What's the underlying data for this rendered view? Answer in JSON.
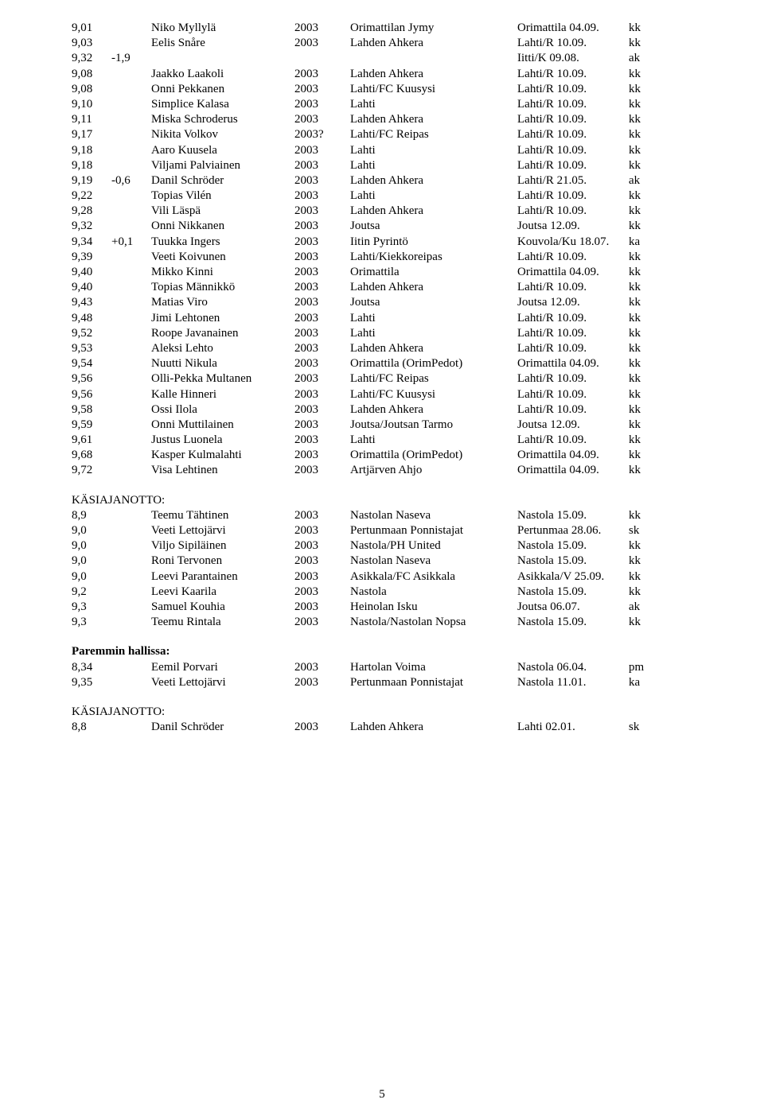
{
  "rows_main": [
    {
      "c1": "9,01",
      "c2": "",
      "c3": "Niko Myllylä",
      "c4": "2003",
      "c5": "Orimattilan Jymy",
      "c6": "Orimattila 04.09.",
      "c7": "kk"
    },
    {
      "c1": "9,03",
      "c2": "",
      "c3": "Eelis Snåre",
      "c4": "2003",
      "c5": "Lahden Ahkera",
      "c6": "Lahti/R 10.09.",
      "c7": "kk"
    },
    {
      "c1": "9,32",
      "c2": "-1,9",
      "c3": "",
      "c4": "",
      "c5": "",
      "c6": "Iitti/K 09.08.",
      "c7": "ak"
    },
    {
      "c1": "9,08",
      "c2": "",
      "c3": "Jaakko Laakoli",
      "c4": "2003",
      "c5": "Lahden Ahkera",
      "c6": "Lahti/R 10.09.",
      "c7": "kk"
    },
    {
      "c1": "9,08",
      "c2": "",
      "c3": "Onni Pekkanen",
      "c4": "2003",
      "c5": "Lahti/FC Kuusysi",
      "c6": "Lahti/R 10.09.",
      "c7": "kk"
    },
    {
      "c1": "9,10",
      "c2": "",
      "c3": "Simplice Kalasa",
      "c4": "2003",
      "c5": "Lahti",
      "c6": "Lahti/R 10.09.",
      "c7": "kk"
    },
    {
      "c1": "9,11",
      "c2": "",
      "c3": "Miska Schroderus",
      "c4": "2003",
      "c5": "Lahden Ahkera",
      "c6": "Lahti/R 10.09.",
      "c7": "kk"
    },
    {
      "c1": "9,17",
      "c2": "",
      "c3": "Nikita Volkov",
      "c4": "2003?",
      "c5": "Lahti/FC Reipas",
      "c6": "Lahti/R 10.09.",
      "c7": "kk"
    },
    {
      "c1": "9,18",
      "c2": "",
      "c3": "Aaro Kuusela",
      "c4": "2003",
      "c5": "Lahti",
      "c6": "Lahti/R 10.09.",
      "c7": "kk"
    },
    {
      "c1": "9,18",
      "c2": "",
      "c3": "Viljami Palviainen",
      "c4": "2003",
      "c5": "Lahti",
      "c6": "Lahti/R 10.09.",
      "c7": "kk"
    },
    {
      "c1": "9,19",
      "c2": "-0,6",
      "c3": "Danil Schröder",
      "c4": "2003",
      "c5": "Lahden Ahkera",
      "c6": "Lahti/R 21.05.",
      "c7": "ak"
    },
    {
      "c1": "9,22",
      "c2": "",
      "c3": "Topias Vilén",
      "c4": "2003",
      "c5": "Lahti",
      "c6": "Lahti/R 10.09.",
      "c7": "kk"
    },
    {
      "c1": "9,28",
      "c2": "",
      "c3": "Vili Läspä",
      "c4": "2003",
      "c5": "Lahden Ahkera",
      "c6": "Lahti/R 10.09.",
      "c7": "kk"
    },
    {
      "c1": "9,32",
      "c2": "",
      "c3": "Onni Nikkanen",
      "c4": "2003",
      "c5": "Joutsa",
      "c6": "Joutsa 12.09.",
      "c7": "kk"
    },
    {
      "c1": "9,34",
      "c2": "+0,1",
      "c3": "Tuukka Ingers",
      "c4": "2003",
      "c5": "Iitin Pyrintö",
      "c6": "Kouvola/Ku 18.07.",
      "c7": "ka"
    },
    {
      "c1": "9,39",
      "c2": "",
      "c3": "Veeti Koivunen",
      "c4": "2003",
      "c5": "Lahti/Kiekkoreipas",
      "c6": "Lahti/R 10.09.",
      "c7": "kk"
    },
    {
      "c1": "9,40",
      "c2": "",
      "c3": "Mikko Kinni",
      "c4": "2003",
      "c5": "Orimattila",
      "c6": "Orimattila 04.09.",
      "c7": "kk"
    },
    {
      "c1": "9,40",
      "c2": "",
      "c3": "Topias Männikkö",
      "c4": "2003",
      "c5": "Lahden Ahkera",
      "c6": "Lahti/R 10.09.",
      "c7": "kk"
    },
    {
      "c1": "9,43",
      "c2": "",
      "c3": "Matias Viro",
      "c4": "2003",
      "c5": "Joutsa",
      "c6": "Joutsa 12.09.",
      "c7": "kk"
    },
    {
      "c1": "9,48",
      "c2": "",
      "c3": "Jimi Lehtonen",
      "c4": "2003",
      "c5": "Lahti",
      "c6": "Lahti/R 10.09.",
      "c7": "kk"
    },
    {
      "c1": "9,52",
      "c2": "",
      "c3": "Roope Javanainen",
      "c4": "2003",
      "c5": "Lahti",
      "c6": "Lahti/R 10.09.",
      "c7": "kk"
    },
    {
      "c1": "9,53",
      "c2": "",
      "c3": "Aleksi Lehto",
      "c4": "2003",
      "c5": "Lahden Ahkera",
      "c6": "Lahti/R 10.09.",
      "c7": "kk"
    },
    {
      "c1": "9,54",
      "c2": "",
      "c3": "Nuutti Nikula",
      "c4": "2003",
      "c5": "Orimattila (OrimPedot)",
      "c6": "Orimattila 04.09.",
      "c7": "kk"
    },
    {
      "c1": "9,56",
      "c2": "",
      "c3": "Olli-Pekka Multanen",
      "c4": "2003",
      "c5": "Lahti/FC Reipas",
      "c6": "Lahti/R 10.09.",
      "c7": "kk"
    },
    {
      "c1": "9,56",
      "c2": "",
      "c3": "Kalle Hinneri",
      "c4": "2003",
      "c5": "Lahti/FC Kuusysi",
      "c6": "Lahti/R 10.09.",
      "c7": "kk"
    },
    {
      "c1": "9,58",
      "c2": "",
      "c3": "Ossi Ilola",
      "c4": "2003",
      "c5": "Lahden Ahkera",
      "c6": "Lahti/R 10.09.",
      "c7": "kk"
    },
    {
      "c1": "9,59",
      "c2": "",
      "c3": "Onni Muttilainen",
      "c4": "2003",
      "c5": "Joutsa/Joutsan Tarmo",
      "c6": "Joutsa 12.09.",
      "c7": "kk"
    },
    {
      "c1": "9,61",
      "c2": "",
      "c3": "Justus Luonela",
      "c4": "2003",
      "c5": "Lahti",
      "c6": "Lahti/R 10.09.",
      "c7": "kk"
    },
    {
      "c1": "9,68",
      "c2": "",
      "c3": "Kasper Kulmalahti",
      "c4": "2003",
      "c5": "Orimattila (OrimPedot)",
      "c6": "Orimattila 04.09.",
      "c7": "kk"
    },
    {
      "c1": "9,72",
      "c2": "",
      "c3": "Visa Lehtinen",
      "c4": "2003",
      "c5": "Artjärven Ahjo",
      "c6": "Orimattila 04.09.",
      "c7": "kk"
    }
  ],
  "head1": "KÄSIAJANOTTO:",
  "rows_k1": [
    {
      "c1": "8,9",
      "c2": "",
      "c3": "Teemu Tähtinen",
      "c4": "2003",
      "c5": "Nastolan Naseva",
      "c6": "Nastola 15.09.",
      "c7": "kk"
    },
    {
      "c1": "9,0",
      "c2": "",
      "c3": "Veeti Lettojärvi",
      "c4": "2003",
      "c5": "Pertunmaan Ponnistajat",
      "c6": "Pertunmaa 28.06.",
      "c7": "sk"
    },
    {
      "c1": "9,0",
      "c2": "",
      "c3": "Viljo Sipiläinen",
      "c4": "2003",
      "c5": "Nastola/PH United",
      "c6": "Nastola 15.09.",
      "c7": "kk"
    },
    {
      "c1": "9,0",
      "c2": "",
      "c3": "Roni Tervonen",
      "c4": "2003",
      "c5": "Nastolan Naseva",
      "c6": "Nastola 15.09.",
      "c7": "kk"
    },
    {
      "c1": "9,0",
      "c2": "",
      "c3": "Leevi Parantainen",
      "c4": "2003",
      "c5": "Asikkala/FC Asikkala",
      "c6": "Asikkala/V 25.09.",
      "c7": "kk"
    },
    {
      "c1": "9,2",
      "c2": "",
      "c3": "Leevi Kaarila",
      "c4": "2003",
      "c5": "Nastola",
      "c6": "Nastola 15.09.",
      "c7": "kk"
    },
    {
      "c1": "9,3",
      "c2": "",
      "c3": "Samuel Kouhia",
      "c4": "2003",
      "c5": "Heinolan Isku",
      "c6": "Joutsa 06.07.",
      "c7": "ak"
    },
    {
      "c1": "9,3",
      "c2": "",
      "c3": "Teemu Rintala",
      "c4": "2003",
      "c5": "Nastola/Nastolan Nopsa",
      "c6": "Nastola 15.09.",
      "c7": "kk"
    }
  ],
  "head2": "Paremmin hallissa:",
  "rows_h": [
    {
      "c1": "8,34",
      "c2": "",
      "c3": "Eemil Porvari",
      "c4": "2003",
      "c5": "Hartolan Voima",
      "c6": "Nastola 06.04.",
      "c7": "pm"
    },
    {
      "c1": "9,35",
      "c2": "",
      "c3": "Veeti Lettojärvi",
      "c4": "2003",
      "c5": "Pertunmaan Ponnistajat",
      "c6": "Nastola 11.01.",
      "c7": "ka"
    }
  ],
  "head3": "KÄSIAJANOTTO:",
  "rows_k2": [
    {
      "c1": "8,8",
      "c2": "",
      "c3": "Danil Schröder",
      "c4": "2003",
      "c5": "Lahden Ahkera",
      "c6": "Lahti 02.01.",
      "c7": "sk"
    }
  ],
  "pagenum": "5"
}
